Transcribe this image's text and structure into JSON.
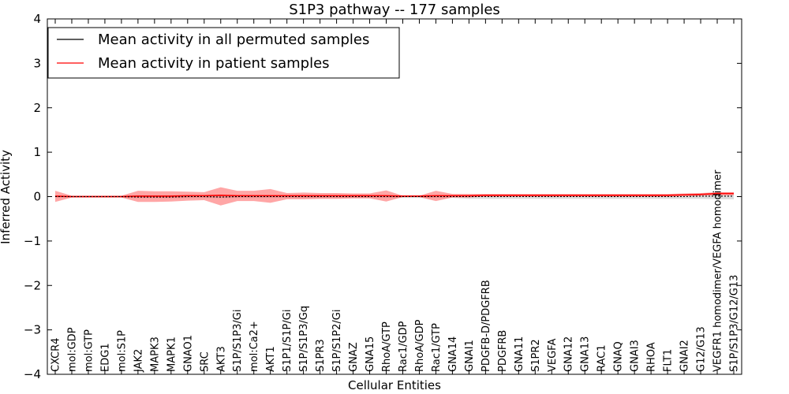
{
  "chart_data": {
    "type": "line",
    "title": "S1P3 pathway -- 177 samples",
    "xlabel": "Cellular Entities",
    "ylabel": "Inferred Activity",
    "ylim": [
      -4,
      4
    ],
    "yticks": [
      4,
      3,
      2,
      1,
      0,
      -1,
      -2,
      -3,
      -4
    ],
    "ytick_labels": [
      "4",
      "3",
      "2",
      "1",
      "0",
      "−1",
      "−2",
      "−3",
      "−4"
    ],
    "legend_position": "top-left",
    "categories": [
      "CXCR4",
      "mol:GDP",
      "mol:GTP",
      "EDG1",
      "mol:S1P",
      "JAK2",
      "MAPK3",
      "MAPK1",
      "GNAO1",
      "SRC",
      "AKT3",
      "S1P/S1P3/Gi",
      "mol:Ca2+",
      "AKT1",
      "S1P1/S1P/Gi",
      "S1P/S1P3/Gq",
      "S1PR3",
      "S1P/S1P2/Gi",
      "GNAZ",
      "GNA15",
      "RhoA/GTP",
      "Rac1/GDP",
      "RhoA/GDP",
      "Rac1/GTP",
      "GNA14",
      "GNAI1",
      "PDGFB-D/PDGFRB",
      "PDGFRB",
      "GNA11",
      "S1PR2",
      "VEGFA",
      "GNA12",
      "GNA13",
      "RAC1",
      "GNAQ",
      "GNAI3",
      "RHOA",
      "FLT1",
      "GNAI2",
      "G12/G13",
      "VEGFR1 homodimer/VEGFA homodimer",
      "S1P/S1P3/G12/G13"
    ],
    "series": [
      {
        "name": "Mean activity in all permuted samples",
        "color": "#000000",
        "values": [
          0,
          0,
          0,
          0,
          0,
          -0.01,
          -0.01,
          -0.01,
          0,
          0,
          -0.01,
          0,
          0,
          0,
          0,
          0,
          0,
          0,
          0,
          0,
          0,
          0,
          0,
          0,
          0,
          0,
          0,
          0,
          0,
          0,
          0,
          0,
          0,
          0,
          0,
          0,
          0,
          0,
          0,
          0.01,
          0.01,
          0.01
        ],
        "band_upper": [
          0.02,
          0.02,
          0.02,
          0.02,
          0.02,
          0.03,
          0.03,
          0.03,
          0.03,
          0.03,
          0.03,
          0.03,
          0.03,
          0.03,
          0.03,
          0.03,
          0.03,
          0.03,
          0.03,
          0.03,
          0.03,
          0.03,
          0.03,
          0.03,
          0.03,
          0.03,
          0.03,
          0.03,
          0.03,
          0.03,
          0.03,
          0.03,
          0.03,
          0.03,
          0.03,
          0.03,
          0.03,
          0.03,
          0.03,
          0.04,
          0.04,
          0.04
        ],
        "band_lower": [
          -0.02,
          -0.02,
          -0.02,
          -0.02,
          -0.02,
          -0.03,
          -0.03,
          -0.03,
          -0.03,
          -0.03,
          -0.03,
          -0.03,
          -0.03,
          -0.03,
          -0.03,
          -0.03,
          -0.03,
          -0.03,
          -0.03,
          -0.03,
          -0.03,
          -0.03,
          -0.03,
          -0.03,
          -0.03,
          -0.05,
          -0.05,
          -0.05,
          -0.05,
          -0.05,
          -0.05,
          -0.05,
          -0.05,
          -0.05,
          -0.05,
          -0.05,
          -0.05,
          -0.05,
          -0.05,
          -0.05,
          -0.06,
          -0.06
        ]
      },
      {
        "name": "Mean activity in patient samples",
        "color": "#ff0000",
        "values": [
          0.01,
          0,
          0,
          0,
          0,
          0.01,
          0.01,
          0.01,
          0.02,
          0.02,
          0.03,
          0.02,
          0.02,
          0.02,
          0.02,
          0.02,
          0.02,
          0.02,
          0.02,
          0.02,
          0.02,
          0.01,
          0.01,
          0.02,
          0.02,
          0.02,
          0.03,
          0.03,
          0.03,
          0.03,
          0.03,
          0.03,
          0.03,
          0.03,
          0.03,
          0.03,
          0.03,
          0.03,
          0.04,
          0.05,
          0.07,
          0.07
        ],
        "band_upper": [
          0.13,
          0.02,
          0.02,
          0.02,
          0.02,
          0.13,
          0.12,
          0.12,
          0.11,
          0.1,
          0.21,
          0.13,
          0.13,
          0.17,
          0.08,
          0.09,
          0.08,
          0.08,
          0.07,
          0.07,
          0.14,
          0.02,
          0.02,
          0.13,
          0.06,
          0.06,
          0.06,
          0.06,
          0.06,
          0.06,
          0.06,
          0.06,
          0.06,
          0.06,
          0.06,
          0.06,
          0.06,
          0.06,
          0.07,
          0.08,
          0.1,
          0.1
        ],
        "band_lower": [
          -0.12,
          -0.02,
          -0.02,
          -0.02,
          -0.02,
          -0.12,
          -0.12,
          -0.11,
          -0.09,
          -0.08,
          -0.2,
          -0.1,
          -0.1,
          -0.14,
          -0.06,
          -0.06,
          -0.05,
          -0.05,
          -0.04,
          -0.04,
          -0.11,
          -0.01,
          -0.01,
          -0.1,
          -0.02,
          -0.02,
          0,
          0,
          0,
          0,
          0,
          0,
          0,
          0,
          0,
          0,
          0,
          0,
          0.01,
          0.02,
          0.03,
          0.03
        ]
      }
    ]
  }
}
